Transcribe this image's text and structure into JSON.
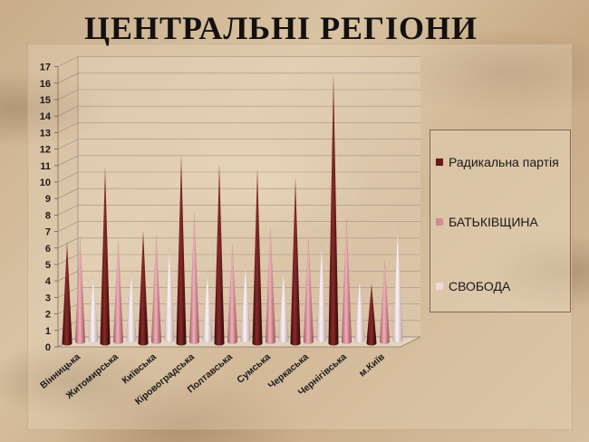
{
  "title": "ЦЕНТРАЛЬНІ РЕГІОНИ",
  "chart_data": {
    "type": "bar",
    "categories": [
      "Вінницька",
      "Житомирська",
      "Київська",
      "Кіровоградська",
      "Полтавська",
      "Сумська",
      "Черкаська",
      "Чернігівська",
      "м.Київ"
    ],
    "series": [
      {
        "name": "Радикальна партія",
        "values": [
          6.1,
          10.6,
          6.8,
          11.3,
          10.8,
          10.5,
          10.0,
          16.2,
          3.6
        ]
      },
      {
        "name": "БАТЬКІВЩИНА",
        "values": [
          6.3,
          6.1,
          6.5,
          7.8,
          5.9,
          6.9,
          6.2,
          7.4,
          4.9
        ]
      },
      {
        "name": "СВОБОДА",
        "values": [
          3.9,
          4.1,
          5.6,
          4.1,
          4.6,
          4.2,
          5.8,
          3.7,
          6.8
        ]
      }
    ],
    "ylim": [
      0,
      17
    ],
    "yticks": [
      "0",
      "1",
      "2",
      "3",
      "4",
      "5",
      "6",
      "7",
      "8",
      "9",
      "10",
      "11",
      "12",
      "13",
      "14",
      "15",
      "16",
      "17"
    ],
    "grid": true,
    "legend_position": "right",
    "colors": [
      "#6b1818",
      "#d68a95",
      "#efd9dc"
    ]
  }
}
